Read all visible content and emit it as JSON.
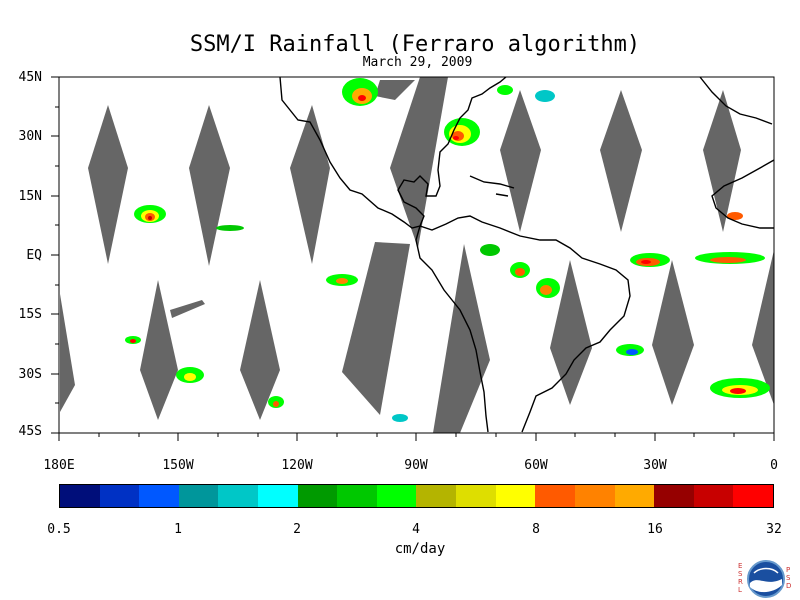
{
  "title": "SSM/I Rainfall (Ferraro algorithm)",
  "date": "March 29, 2009",
  "lat_labels": [
    "45N",
    "30N",
    "15N",
    "EQ",
    "15S",
    "30S",
    "45S"
  ],
  "lon_labels": [
    "180E",
    "150W",
    "120W",
    "90W",
    "60W",
    "30W",
    "0"
  ],
  "colorbar": {
    "colors": [
      "#000e7a",
      "#0031c4",
      "#0058ff",
      "#00969b",
      "#00c7c7",
      "#00ffff",
      "#009a00",
      "#00c800",
      "#00ff00",
      "#b4b400",
      "#dede00",
      "#ffff00",
      "#ff5a00",
      "#ff8200",
      "#ffaa00",
      "#960000",
      "#c80000",
      "#ff0000"
    ],
    "tick_labels": [
      "0.5",
      "1",
      "2",
      "4",
      "8",
      "16",
      "32"
    ],
    "unit": "cm/day"
  },
  "logo": {
    "left_text": "ESRL",
    "right_text": "PSD",
    "name": "noaa-logo-icon"
  },
  "colors": {
    "swath_gap": "#666666",
    "coast": "#000000"
  }
}
